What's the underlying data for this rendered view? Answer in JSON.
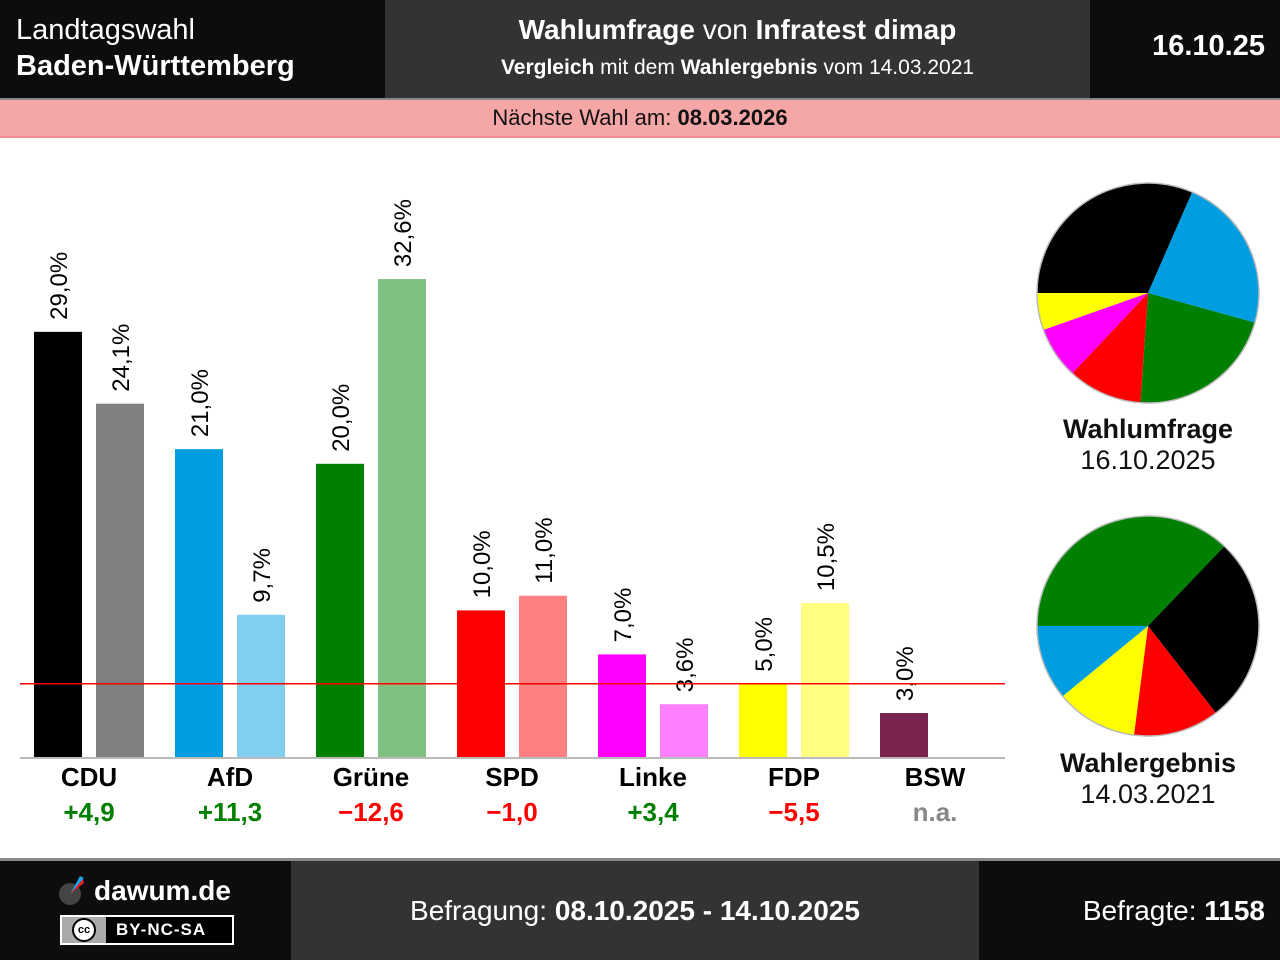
{
  "header": {
    "left_line1": "Landtagswahl",
    "left_line2": "Baden-Württemberg",
    "mid_line1_bold_a": "Wahlumfrage",
    "mid_line1_normal": " von ",
    "mid_line1_bold_b": "Infratest dimap",
    "mid_line2_bold_a": "Vergleich",
    "mid_line2_normal_a": " mit dem ",
    "mid_line2_bold_b": "Wahlergebnis",
    "mid_line2_normal_b": " vom 14.03.2021",
    "date_short": "16.10.25"
  },
  "next_election": {
    "label": "Nächste Wahl am: ",
    "date": "08.03.2026"
  },
  "chart_data": {
    "type": "bar",
    "title": "Wahlumfrage von Infratest dimap – Landtagswahl Baden-Württemberg",
    "categories": [
      "CDU",
      "AfD",
      "Grüne",
      "SPD",
      "Linke",
      "FDP",
      "BSW"
    ],
    "series": [
      {
        "name": "Wahlumfrage 16.10.2025",
        "values": [
          29.0,
          21.0,
          20.0,
          10.0,
          7.0,
          5.0,
          3.0
        ],
        "labels": [
          "29,0%",
          "21,0%",
          "20,0%",
          "10,0%",
          "7,0%",
          "5,0%",
          "3,0%"
        ]
      },
      {
        "name": "Wahlergebnis 14.03.2021",
        "values": [
          24.1,
          9.7,
          32.6,
          11.0,
          3.6,
          10.5,
          null
        ],
        "labels": [
          "24,1%",
          "9,7%",
          "32,6%",
          "11,0%",
          "3,6%",
          "10,5%",
          ""
        ]
      }
    ],
    "colors_poll": [
      "#000000",
      "#009ee0",
      "#008000",
      "#ff0000",
      "#ff00ff",
      "#ffff00",
      "#7b2450"
    ],
    "colors_result": [
      "#808080",
      "#80cfef",
      "#80c080",
      "#ff8080",
      "#ff80ff",
      "#ffff80",
      "#bd92a8"
    ],
    "changes": [
      "+4,9",
      "+11,3",
      "−12,6",
      "−1,0",
      "+3,4",
      "−5,5",
      "n.a."
    ],
    "change_colors": [
      "#008000",
      "#008000",
      "#ff0000",
      "#ff0000",
      "#008000",
      "#ff0000",
      "#888888"
    ],
    "threshold": 5.0,
    "threshold_color": "#ff0000",
    "ylim": [
      0,
      35
    ],
    "xlabel": "",
    "ylabel": "",
    "grid": false
  },
  "pies": [
    {
      "title": "Wahlumfrage",
      "date": "16.10.2025",
      "order": [
        "CDU",
        "AfD",
        "Grüne",
        "SPD",
        "Linke",
        "FDP"
      ],
      "values": [
        29.0,
        21.0,
        20.0,
        10.0,
        7.0,
        5.0
      ],
      "colors": [
        "#000000",
        "#009ee0",
        "#008000",
        "#ff0000",
        "#ff00ff",
        "#ffff00"
      ]
    },
    {
      "title": "Wahlergebnis",
      "date": "14.03.2021",
      "order": [
        "Grüne",
        "CDU",
        "SPD",
        "FDP",
        "AfD"
      ],
      "values": [
        32.6,
        24.1,
        11.0,
        10.5,
        9.7
      ],
      "colors": [
        "#008000",
        "#000000",
        "#ff0000",
        "#ffff00",
        "#009ee0"
      ]
    }
  ],
  "footer": {
    "site": "dawum.de",
    "license": "BY-NC-SA",
    "license_cc": "cc",
    "survey_label": "Befragung: ",
    "survey_period": "08.10.2025 - 14.10.2025",
    "respondents_label": "Befragte: ",
    "respondents": "1158"
  }
}
